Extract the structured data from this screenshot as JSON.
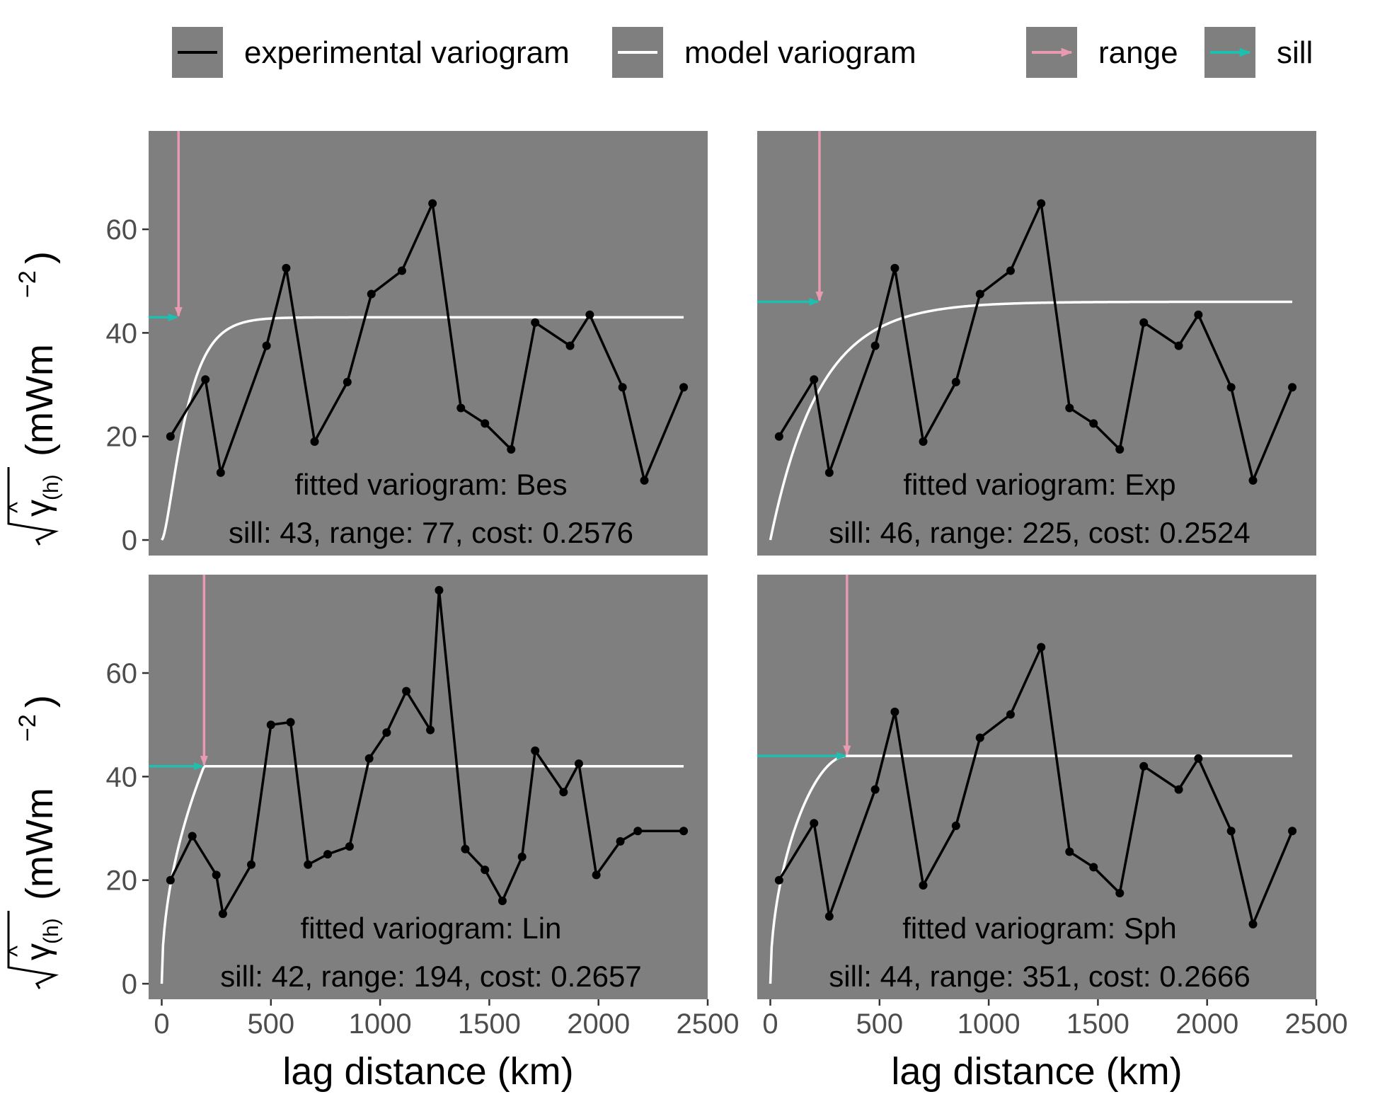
{
  "legend": [
    {
      "label": "experimental variogram",
      "color": "#000000",
      "kind": "line"
    },
    {
      "label": "model variogram",
      "color": "#ffffff",
      "kind": "line"
    },
    {
      "label": "range",
      "color": "#e89ab0",
      "kind": "arrow"
    },
    {
      "label": "sill",
      "color": "#1fbfb0",
      "kind": "arrow"
    }
  ],
  "colors": {
    "panel_bg": "#7f7f7f",
    "experimental": "#000000",
    "model": "#ffffff",
    "range_arrow": "#e89ab0",
    "sill_arrow": "#1fbfb0",
    "tick_text": "#4d4d4d"
  },
  "axes": {
    "xlabel": "lag distance (km)",
    "ylabel_unit": "(mWm",
    "ylabel_exp": "−2",
    "ylabel_close": ")",
    "ylabel_symbol": "γ",
    "ylabel_hat": "^",
    "ylabel_sub": "(h)",
    "xlim": [
      -60,
      2500
    ],
    "ylim": [
      -3,
      79
    ],
    "xticks": [
      0,
      500,
      1000,
      1500,
      2000,
      2500
    ],
    "yticks": [
      0,
      20,
      40,
      60
    ]
  },
  "chart_data": [
    {
      "type": "line",
      "model": "Bes",
      "annotation_line1": "fitted variogram: Bes",
      "annotation_line2": "sill: 43, range: 77, cost: 0.2576",
      "sill": 43,
      "range": 77,
      "cost": 0.2576,
      "experimental": {
        "x": [
          40,
          200,
          270,
          480,
          570,
          700,
          850,
          960,
          1100,
          1240,
          1370,
          1480,
          1600,
          1710,
          1870,
          1960,
          2110,
          2210,
          2390
        ],
        "y": [
          20,
          31,
          13,
          37.5,
          52.5,
          19,
          30.5,
          47.5,
          52,
          65,
          25.5,
          22.5,
          17.5,
          42,
          37.5,
          43.5,
          29.5,
          11.5,
          29.5
        ]
      },
      "model_curve": {
        "x_max": 2390
      }
    },
    {
      "type": "line",
      "model": "Exp",
      "annotation_line1": "fitted variogram: Exp",
      "annotation_line2": "sill: 46, range: 225, cost: 0.2524",
      "sill": 46,
      "range": 225,
      "cost": 0.2524,
      "experimental": {
        "x": [
          40,
          200,
          270,
          480,
          570,
          700,
          850,
          960,
          1100,
          1240,
          1370,
          1480,
          1600,
          1710,
          1870,
          1960,
          2110,
          2210,
          2390
        ],
        "y": [
          20,
          31,
          13,
          37.5,
          52.5,
          19,
          30.5,
          47.5,
          52,
          65,
          25.5,
          22.5,
          17.5,
          42,
          37.5,
          43.5,
          29.5,
          11.5,
          29.5
        ]
      },
      "model_curve": {
        "x_max": 2390
      }
    },
    {
      "type": "line",
      "model": "Lin",
      "annotation_line1": "fitted variogram: Lin",
      "annotation_line2": "sill: 42, range: 194, cost: 0.2657",
      "sill": 42,
      "range": 194,
      "cost": 0.2657,
      "experimental": {
        "x": [
          40,
          140,
          250,
          280,
          410,
          500,
          590,
          670,
          760,
          860,
          950,
          1030,
          1120,
          1230,
          1270,
          1390,
          1480,
          1560,
          1650,
          1710,
          1840,
          1910,
          1990,
          2100,
          2180,
          2390
        ],
        "y": [
          20,
          28.5,
          21,
          13.5,
          23,
          50,
          50.5,
          23,
          25,
          26.5,
          43.5,
          48.5,
          56.5,
          49,
          76,
          26,
          22,
          16,
          24.5,
          45,
          37,
          42.5,
          21,
          27.5,
          29.5,
          29.5
        ]
      },
      "model_curve": {
        "x_max": 2390
      }
    },
    {
      "type": "line",
      "model": "Sph",
      "annotation_line1": "fitted variogram: Sph",
      "annotation_line2": "sill: 44, range: 351, cost: 0.2666",
      "sill": 44,
      "range": 351,
      "cost": 0.2666,
      "experimental": {
        "x": [
          40,
          200,
          270,
          480,
          570,
          700,
          850,
          960,
          1100,
          1240,
          1370,
          1480,
          1600,
          1710,
          1870,
          1960,
          2110,
          2210,
          2390
        ],
        "y": [
          20,
          31,
          13,
          37.5,
          52.5,
          19,
          30.5,
          47.5,
          52,
          65,
          25.5,
          22.5,
          17.5,
          42,
          37.5,
          43.5,
          29.5,
          11.5,
          29.5
        ]
      },
      "model_curve": {
        "x_max": 2390
      }
    }
  ]
}
